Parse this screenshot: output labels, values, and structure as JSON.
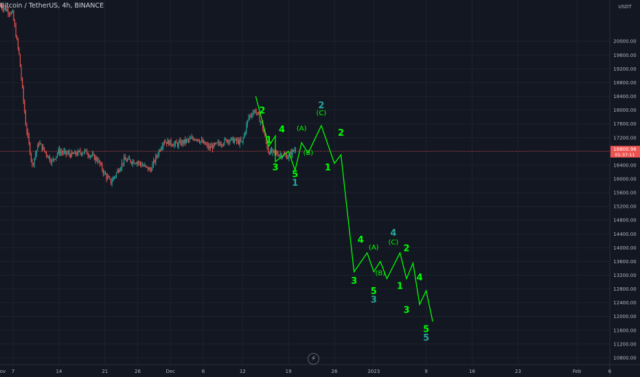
{
  "header": {
    "legend_text": "Bitcoin / TetherUS, 4h, BINANCE"
  },
  "colors": {
    "background": "#131722",
    "grid": "#1e222d",
    "bull": "#26a69a",
    "bear": "#ef5350",
    "wave_primary": "#00ff00",
    "wave_secondary": "#26a69a",
    "price_line": "#ef5350",
    "axis_text": "#b2b5be"
  },
  "toolbar": {
    "bolt_icon": "lightning-bolt-icon",
    "bolt_glyph": "⚡"
  },
  "chart_data": {
    "type": "candlestick",
    "y_axis": {
      "unit": "USDT",
      "range": [
        10600,
        21200
      ],
      "ticks": [
        "20000.00",
        "19600.00",
        "19200.00",
        "18800.00",
        "18400.00",
        "18000.00",
        "17600.00",
        "17200.00",
        "16400.00",
        "16000.00",
        "15600.00",
        "15200.00",
        "14800.00",
        "14400.00",
        "14000.00",
        "13600.00",
        "13200.00",
        "12800.00",
        "12400.00",
        "12000.00",
        "11600.00",
        "11200.00",
        "10800.00"
      ]
    },
    "x_axis": {
      "range": [
        "2022-11-05",
        "2023-02-06"
      ],
      "ticks": [
        {
          "label": "ov",
          "date": "2022-11-01"
        },
        {
          "label": "7",
          "date": "2022-11-07"
        },
        {
          "label": "14",
          "date": "2022-11-14"
        },
        {
          "label": "21",
          "date": "2022-11-21"
        },
        {
          "label": "26",
          "date": "2022-11-26"
        },
        {
          "label": "Dec",
          "date": "2022-12-01"
        },
        {
          "label": "6",
          "date": "2022-12-06"
        },
        {
          "label": "12",
          "date": "2022-12-12"
        },
        {
          "label": "19",
          "date": "2022-12-19"
        },
        {
          "label": "26",
          "date": "2022-12-26"
        },
        {
          "label": "2023",
          "date": "2023-01-01"
        },
        {
          "label": "9",
          "date": "2023-01-09"
        },
        {
          "label": "16",
          "date": "2023-01-16"
        },
        {
          "label": "23",
          "date": "2023-01-23"
        },
        {
          "label": "Feb",
          "date": "2023-02-01"
        },
        {
          "label": "6",
          "date": "2023-02-06"
        }
      ]
    },
    "price_track": [
      [
        "2022-11-05",
        21050
      ],
      [
        "2022-11-07",
        20800
      ],
      [
        "2022-11-08",
        19600
      ],
      [
        "2022-11-09",
        17600
      ],
      [
        "2022-11-10",
        16400
      ],
      [
        "2022-11-11",
        17050
      ],
      [
        "2022-11-13",
        16500
      ],
      [
        "2022-11-14",
        16800
      ],
      [
        "2022-11-16",
        16700
      ],
      [
        "2022-11-18",
        16800
      ],
      [
        "2022-11-20",
        16550
      ],
      [
        "2022-11-21",
        16150
      ],
      [
        "2022-11-22",
        15900
      ],
      [
        "2022-11-24",
        16550
      ],
      [
        "2022-11-26",
        16500
      ],
      [
        "2022-11-28",
        16250
      ],
      [
        "2022-11-30",
        17100
      ],
      [
        "2022-12-02",
        17000
      ],
      [
        "2022-12-05",
        17200
      ],
      [
        "2022-12-07",
        16900
      ],
      [
        "2022-12-10",
        17150
      ],
      [
        "2022-12-12",
        17050
      ],
      [
        "2022-12-13",
        17800
      ],
      [
        "2022-12-14",
        18000
      ],
      [
        "2022-12-15",
        17600
      ],
      [
        "2022-12-16",
        16800
      ],
      [
        "2022-12-18",
        16700
      ],
      [
        "2022-12-19",
        16650
      ],
      [
        "2022-12-20",
        16850
      ]
    ],
    "current_price": {
      "value": 16800.98,
      "label": "16800.98",
      "countdown": "01:37:11"
    },
    "wave_projection": {
      "color": "#00ff00",
      "points": [
        [
          "2022-12-14",
          18400
        ],
        [
          "2022-12-16",
          16950
        ],
        [
          "2022-12-17",
          17250
        ],
        [
          "2022-12-17",
          16500
        ],
        [
          "2022-12-19",
          16800
        ],
        [
          "2022-12-20",
          16250
        ],
        [
          "2022-12-21",
          17050
        ],
        [
          "2022-12-22",
          16750
        ],
        [
          "2022-12-24",
          17550
        ],
        [
          "2022-12-26",
          16450
        ],
        [
          "2022-12-27",
          16700
        ],
        [
          "2022-12-29",
          13300
        ],
        [
          "2022-12-31",
          13850
        ],
        [
          "2023-01-01",
          13300
        ],
        [
          "2023-01-02",
          13600
        ],
        [
          "2023-01-03",
          13100
        ],
        [
          "2023-01-05",
          13850
        ],
        [
          "2023-01-06",
          13100
        ],
        [
          "2023-01-07",
          13550
        ],
        [
          "2023-01-08",
          12350
        ],
        [
          "2023-01-09",
          12750
        ],
        [
          "2023-01-10",
          11850
        ]
      ]
    },
    "annotations": [
      {
        "text": "2",
        "date": "2022-12-15",
        "price": 17900,
        "color": "#00ff00"
      },
      {
        "text": "1",
        "date": "2022-12-16",
        "price": 17050,
        "color": "#00ff00"
      },
      {
        "text": "3",
        "date": "2022-12-17",
        "price": 16250,
        "color": "#00ff00"
      },
      {
        "text": "4",
        "date": "2022-12-18",
        "price": 17350,
        "color": "#00ff00"
      },
      {
        "text": "5",
        "date": "2022-12-20",
        "price": 16050,
        "color": "#00ff00"
      },
      {
        "text": "1",
        "date": "2022-12-20",
        "price": 15800,
        "color": "#26a69a"
      },
      {
        "text": "(A)",
        "date": "2022-12-21",
        "price": 17400,
        "color": "#00ff00"
      },
      {
        "text": "(B)",
        "date": "2022-12-22",
        "price": 16700,
        "color": "#00ff00"
      },
      {
        "text": "2",
        "date": "2022-12-24",
        "price": 18050,
        "color": "#26a69a"
      },
      {
        "text": "(C)",
        "date": "2022-12-24",
        "price": 17850,
        "color": "#00ff00"
      },
      {
        "text": "2",
        "date": "2022-12-27",
        "price": 17250,
        "color": "#00ff00"
      },
      {
        "text": "1",
        "date": "2022-12-25",
        "price": 16250,
        "color": "#00ff00"
      },
      {
        "text": "4",
        "date": "2022-12-30",
        "price": 14150,
        "color": "#00ff00"
      },
      {
        "text": "3",
        "date": "2022-12-29",
        "price": 12950,
        "color": "#00ff00"
      },
      {
        "text": "(A)",
        "date": "2023-01-01",
        "price": 13950,
        "color": "#00ff00"
      },
      {
        "text": "5",
        "date": "2023-01-01",
        "price": 12650,
        "color": "#00ff00"
      },
      {
        "text": "3",
        "date": "2023-01-01",
        "price": 12400,
        "color": "#26a69a"
      },
      {
        "text": "(B)",
        "date": "2023-01-02",
        "price": 13200,
        "color": "#00ff00"
      },
      {
        "text": "4",
        "date": "2023-01-04",
        "price": 14350,
        "color": "#26a69a"
      },
      {
        "text": "(C)",
        "date": "2023-01-04",
        "price": 14100,
        "color": "#00ff00"
      },
      {
        "text": "2",
        "date": "2023-01-06",
        "price": 13900,
        "color": "#00ff00"
      },
      {
        "text": "1",
        "date": "2023-01-05",
        "price": 12800,
        "color": "#00ff00"
      },
      {
        "text": "4",
        "date": "2023-01-08",
        "price": 13050,
        "color": "#00ff00"
      },
      {
        "text": "3",
        "date": "2023-01-06",
        "price": 12100,
        "color": "#00ff00"
      },
      {
        "text": "5",
        "date": "2023-01-09",
        "price": 11550,
        "color": "#00ff00"
      },
      {
        "text": "5",
        "date": "2023-01-09",
        "price": 11300,
        "color": "#26a69a"
      }
    ]
  }
}
